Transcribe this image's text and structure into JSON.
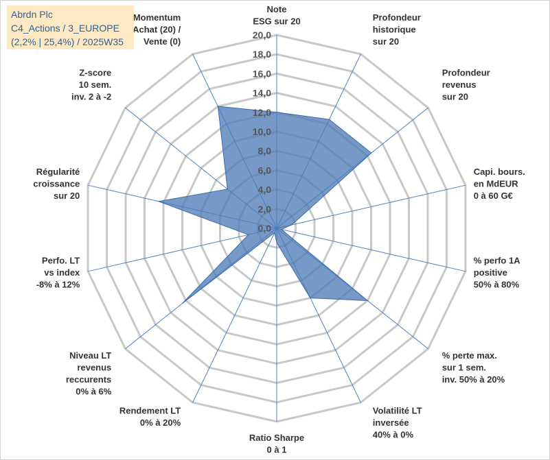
{
  "title_box": {
    "line1": "Abrdn Plc",
    "line2": "C4_Actions / 3_EUROPE",
    "line3": "(2,2% | 25,4%) / 2025W35"
  },
  "chart_data": {
    "type": "radar",
    "rmax": 20,
    "tick_step": 2,
    "ticks": [
      "0,0",
      "2,0",
      "4,0",
      "6,0",
      "8,0",
      "10,0",
      "12,0",
      "14,0",
      "16,0",
      "18,0",
      "20,0"
    ],
    "grid": true,
    "colors": {
      "fill": "#4f7cb8",
      "fill_opacity": 0.78,
      "stroke": "#3f6aa6",
      "ring": "#c8c8c8",
      "spoke": "#4f81bd"
    },
    "axes": [
      {
        "label": [
          "Note",
          "ESG sur 20"
        ],
        "value": 12.0
      },
      {
        "label": [
          "Profondeur",
          "historique",
          "sur 20"
        ],
        "value": 12.5
      },
      {
        "label": [
          "Profondeur",
          "revenus",
          "sur 20"
        ],
        "value": 12.5
      },
      {
        "label": [
          "Capi. bours.",
          "en MdEUR",
          "0 à 60 G€"
        ],
        "value": 1.6
      },
      {
        "label": [
          "% perfo 1A",
          "positive",
          "50% à 80%"
        ],
        "value": 0.5
      },
      {
        "label": [
          "% perte max.",
          "sur 1 sem.",
          "inv. 50% à 20%"
        ],
        "value": 12.0
      },
      {
        "label": [
          "Volatilité LT",
          "inversée",
          "40% à 0%"
        ],
        "value": 8.0
      },
      {
        "label": [
          "Ratio Sharpe",
          "0 à 1"
        ],
        "value": 1.5
      },
      {
        "label": [
          "Rendement LT",
          "0% à 20%"
        ],
        "value": 0.5
      },
      {
        "label": [
          "Niveau LT",
          "revenus",
          "reccurents",
          "0% à 6%"
        ],
        "value": 12.5
      },
      {
        "label": [
          "Perfo. LT",
          "vs index",
          "-8% à 12%"
        ],
        "value": 3.0
      },
      {
        "label": [
          "Régularité",
          "croissance",
          "sur 20"
        ],
        "value": 12.5
      },
      {
        "label": [
          "Z-score",
          "10 sem.",
          "inv. 2 à -2"
        ],
        "value": 6.5
      },
      {
        "label": [
          "Momentum",
          "Achat (20) /",
          "Vente (0)"
        ],
        "value": 14.0
      }
    ]
  }
}
